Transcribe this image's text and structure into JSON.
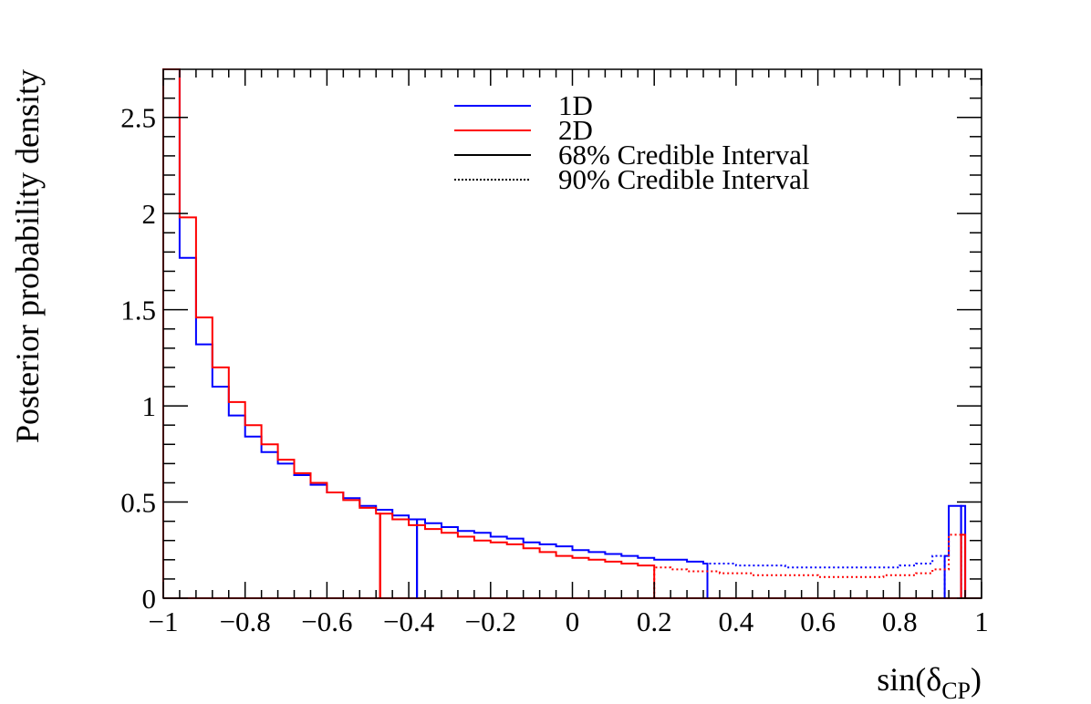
{
  "chart_data": {
    "type": "histogram",
    "xlabel": "sin(δ",
    "xlabel_sub": "CP",
    "xlabel_close": ")",
    "ylabel": "Posterior probability density",
    "xlim": [
      -1,
      1
    ],
    "ylim": [
      0,
      2.75
    ],
    "xticks": [
      -1,
      -0.8,
      -0.6,
      -0.4,
      -0.2,
      0,
      0.2,
      0.4,
      0.6,
      0.8,
      1
    ],
    "xtick_labels": [
      "−1",
      "−0.8",
      "−0.6",
      "−0.4",
      "−0.2",
      "0",
      "0.2",
      "0.4",
      "0.6",
      "0.8",
      "1"
    ],
    "yticks": [
      0,
      0.5,
      1,
      1.5,
      2,
      2.5
    ],
    "ytick_labels": [
      "0",
      "0.5",
      "1",
      "1.5",
      "2",
      "2.5"
    ],
    "bin_edges_start": -1,
    "bin_width": 0.04,
    "series": [
      {
        "name": "1D",
        "color": "#0000ff",
        "values": [
          2.75,
          1.77,
          1.32,
          1.1,
          0.95,
          0.84,
          0.76,
          0.7,
          0.64,
          0.59,
          0.55,
          0.52,
          0.48,
          0.46,
          0.43,
          0.41,
          0.39,
          0.37,
          0.35,
          0.34,
          0.32,
          0.31,
          0.29,
          0.28,
          0.27,
          0.25,
          0.24,
          0.23,
          0.22,
          0.21,
          0.2,
          0.2,
          0.19,
          0.18,
          0.18,
          0.17,
          0.17,
          0.17,
          0.16,
          0.16,
          0.16,
          0.16,
          0.16,
          0.16,
          0.16,
          0.17,
          0.18,
          0.22,
          0.48,
          0.0
        ],
        "interval_68": [
          -0.38,
          0.95
        ],
        "interval_90": [
          0.33,
          0.91
        ]
      },
      {
        "name": "2D",
        "color": "#ff0000",
        "values": [
          2.75,
          1.98,
          1.46,
          1.2,
          1.02,
          0.9,
          0.8,
          0.72,
          0.65,
          0.6,
          0.55,
          0.51,
          0.47,
          0.44,
          0.41,
          0.38,
          0.36,
          0.34,
          0.32,
          0.3,
          0.29,
          0.28,
          0.26,
          0.24,
          0.22,
          0.21,
          0.2,
          0.19,
          0.18,
          0.17,
          0.16,
          0.15,
          0.14,
          0.14,
          0.13,
          0.13,
          0.12,
          0.12,
          0.12,
          0.12,
          0.11,
          0.11,
          0.11,
          0.11,
          0.12,
          0.12,
          0.13,
          0.15,
          0.33,
          0.0
        ],
        "interval_68": [
          -0.47,
          1.0
        ],
        "interval_90": [
          0.2,
          0.95
        ]
      }
    ],
    "legend": {
      "position": "top-center",
      "entries": [
        {
          "label": "1D",
          "color": "#0000ff",
          "style": "solid"
        },
        {
          "label": "2D",
          "color": "#ff0000",
          "style": "solid"
        },
        {
          "label": "68% Credible Interval",
          "color": "#000000",
          "style": "solid"
        },
        {
          "label": "90% Credible Interval",
          "color": "#000000",
          "style": "dotted"
        }
      ]
    },
    "grid": false
  }
}
